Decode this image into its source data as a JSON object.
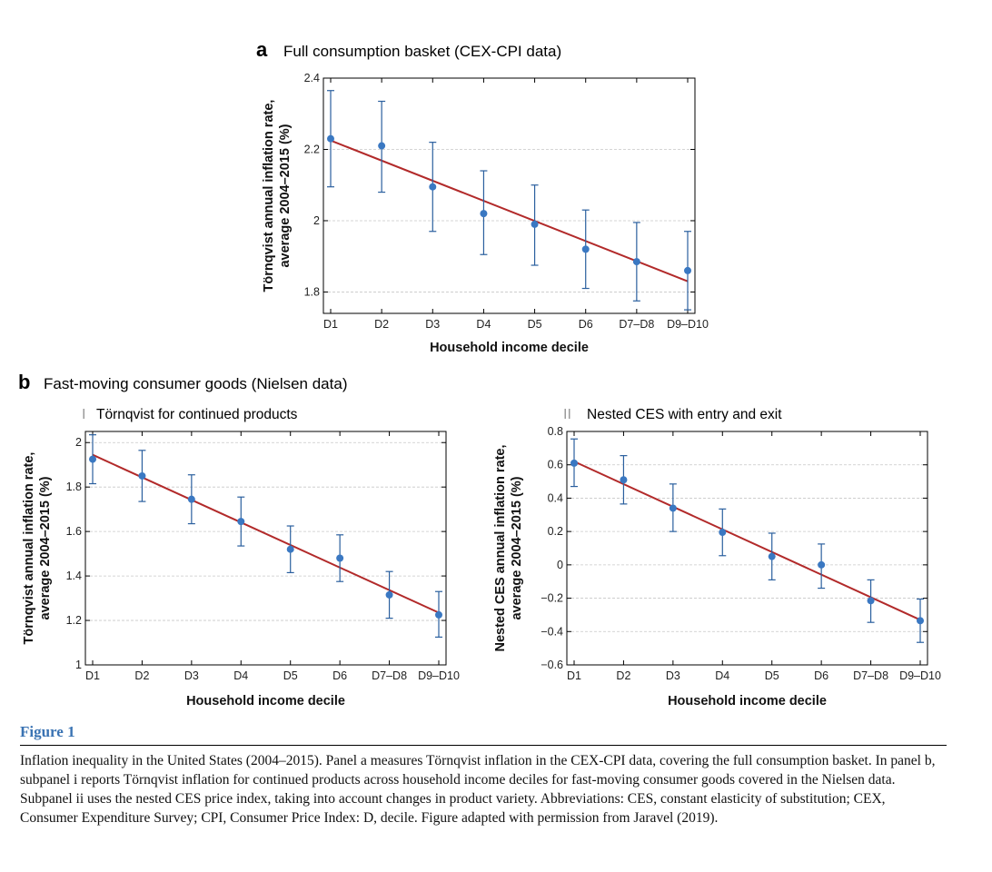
{
  "panel_a": {
    "letter": "a",
    "title": "Full consumption basket (CEX-CPI data)"
  },
  "panel_b": {
    "letter": "b",
    "title": "Fast-moving consumer goods (Nielsen data)",
    "sub_i_marker": "I",
    "sub_i_title": "Törnqvist for continued products",
    "sub_ii_marker": "II",
    "sub_ii_title": "Nested CES with entry and exit"
  },
  "colors": {
    "point": "#3a78c2",
    "fit_line": "#b22a2a",
    "grid": "#c8c8c8"
  },
  "chart_data": [
    {
      "id": "a",
      "type": "scatter",
      "categories": [
        "D1",
        "D2",
        "D3",
        "D4",
        "D5",
        "D6",
        "D7–D8",
        "D9–D10"
      ],
      "values": [
        2.23,
        2.21,
        2.095,
        2.02,
        1.99,
        1.92,
        1.885,
        1.86
      ],
      "err_low": [
        2.095,
        2.08,
        1.97,
        1.905,
        1.875,
        1.81,
        1.775,
        1.75
      ],
      "err_high": [
        2.365,
        2.335,
        2.22,
        2.14,
        2.1,
        2.03,
        1.995,
        1.97
      ],
      "fit": [
        2.225,
        1.83
      ],
      "ylim": [
        1.74,
        2.4
      ],
      "yticks": [
        1.8,
        2.0,
        2.2,
        2.4
      ],
      "ytick_labels": [
        "1.8",
        "2",
        "2.2",
        "2.4"
      ],
      "ylabel_line1": "Törnqvist annual inflation rate,",
      "ylabel_line2": "average 2004–2015 (%)",
      "xlabel": "Household income decile",
      "grid": true
    },
    {
      "id": "b-i",
      "type": "scatter",
      "categories": [
        "D1",
        "D2",
        "D3",
        "D4",
        "D5",
        "D6",
        "D7–D8",
        "D9–D10"
      ],
      "values": [
        1.925,
        1.85,
        1.745,
        1.645,
        1.52,
        1.48,
        1.315,
        1.225
      ],
      "err_low": [
        1.815,
        1.735,
        1.635,
        1.535,
        1.415,
        1.375,
        1.21,
        1.125
      ],
      "err_high": [
        2.035,
        1.965,
        1.855,
        1.755,
        1.625,
        1.585,
        1.42,
        1.33
      ],
      "fit": [
        1.945,
        1.235
      ],
      "ylim": [
        1.0,
        2.05
      ],
      "yticks": [
        1.0,
        1.2,
        1.4,
        1.6,
        1.8,
        2.0
      ],
      "ytick_labels": [
        "1",
        "1.2",
        "1.4",
        "1.6",
        "1.8",
        "2"
      ],
      "ylabel_line1": "Törnqvist annual inflation rate,",
      "ylabel_line2": "average 2004–2015 (%)",
      "xlabel": "Household income decile",
      "grid": true
    },
    {
      "id": "b-ii",
      "type": "scatter",
      "categories": [
        "D1",
        "D2",
        "D3",
        "D4",
        "D5",
        "D6",
        "D7–D8",
        "D9–D10"
      ],
      "values": [
        0.61,
        0.51,
        0.34,
        0.195,
        0.05,
        0.0,
        -0.215,
        -0.335
      ],
      "err_low": [
        0.47,
        0.365,
        0.2,
        0.055,
        -0.09,
        -0.14,
        -0.345,
        -0.465
      ],
      "err_high": [
        0.755,
        0.655,
        0.485,
        0.335,
        0.19,
        0.125,
        -0.09,
        -0.205
      ],
      "fit": [
        0.62,
        -0.33
      ],
      "ylim": [
        -0.6,
        0.8
      ],
      "yticks": [
        -0.6,
        -0.4,
        -0.2,
        0.0,
        0.2,
        0.4,
        0.6,
        0.8
      ],
      "ytick_labels": [
        "−0.6",
        "−0.4",
        "−0.2",
        "0",
        "0.2",
        "0.4",
        "0.6",
        "0.8"
      ],
      "ylabel_line1": "Nested CES annual inflation rate,",
      "ylabel_line2": "average 2004–2015 (%)",
      "xlabel": "Household income decile",
      "grid": true
    }
  ],
  "caption": {
    "label": "Figure 1",
    "text": "Inflation inequality in the United States (2004–2015). Panel a measures Törnqvist inflation in the CEX-CPI data, covering the full consumption basket. In panel b, subpanel i reports Törnqvist inflation for continued products across household income deciles for fast-moving consumer goods covered in the Nielsen data. Subpanel ii uses the nested CES price index, taking into account changes in product variety. Abbreviations: CES, constant elasticity of substitution; CEX, Consumer Expenditure Survey; CPI, Consumer Price Index: D, decile. Figure adapted with permission from Jaravel (2019)."
  }
}
